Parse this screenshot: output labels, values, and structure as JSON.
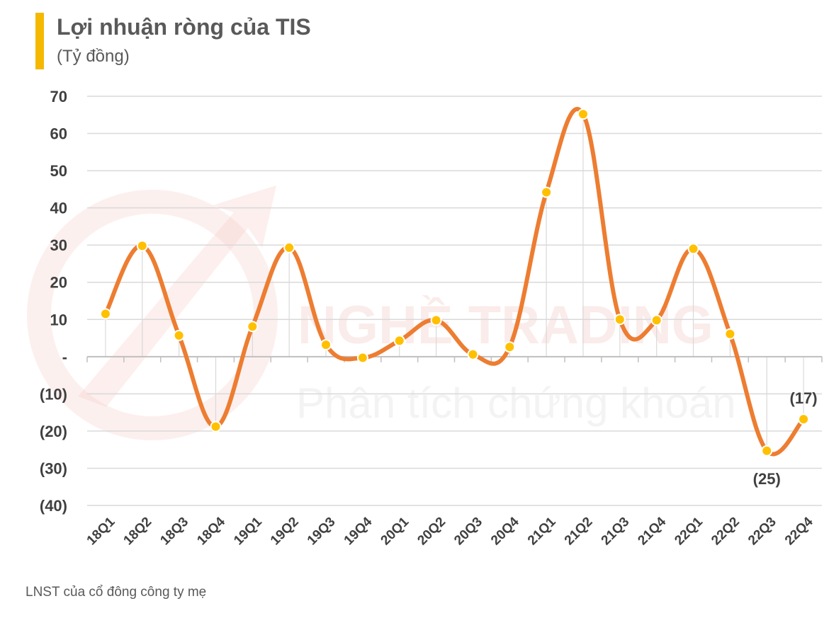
{
  "colors": {
    "accent_bar": "#F5B800",
    "line": "#ED7D31",
    "marker": "#FFC000",
    "marker_stroke": "#FFFFFF",
    "grid": "#D9D9D9",
    "axis_text": "#404040",
    "watermark": "#F0B4AE"
  },
  "watermark": {
    "line1": "NGHỀ TRADING",
    "line2": "Phân tích chứng khoán"
  },
  "footnote": "LNST của cổ đông công ty mẹ",
  "chart_data": {
    "type": "line",
    "title": "Lợi nhuận ròng của TIS",
    "subtitle": "(Tỷ đồng)",
    "xlabel": "",
    "ylabel": "",
    "categories": [
      "18Q1",
      "18Q2",
      "18Q3",
      "18Q4",
      "19Q1",
      "19Q2",
      "19Q3",
      "19Q4",
      "20Q1",
      "20Q2",
      "20Q3",
      "20Q4",
      "21Q1",
      "21Q2",
      "21Q3",
      "21Q4",
      "22Q1",
      "22Q2",
      "22Q3",
      "22Q4"
    ],
    "series": [
      {
        "values": [
          11.5,
          29.8,
          5.7,
          -18.8,
          8.1,
          29.3,
          3.2,
          -0.3,
          4.3,
          9.8,
          0.6,
          2.6,
          44.2,
          65.2,
          10.0,
          9.8,
          29.0,
          6.1,
          -25.3,
          -16.8
        ]
      }
    ],
    "ylim": [
      -40,
      70
    ],
    "yticks": [
      70,
      60,
      50,
      40,
      30,
      20,
      10,
      0,
      -10,
      -20,
      -30,
      -40
    ],
    "ytick_labels": [
      "70",
      "60",
      "50",
      "40",
      "30",
      "20",
      "10",
      "-",
      "(10)",
      "(20)",
      "(30)",
      "(40)"
    ],
    "data_labels": [
      {
        "index": 18,
        "text": "(25)",
        "position": "below"
      },
      {
        "index": 19,
        "text": "(17)",
        "position": "above"
      }
    ],
    "grid": true,
    "smooth": true,
    "legend": "none"
  }
}
